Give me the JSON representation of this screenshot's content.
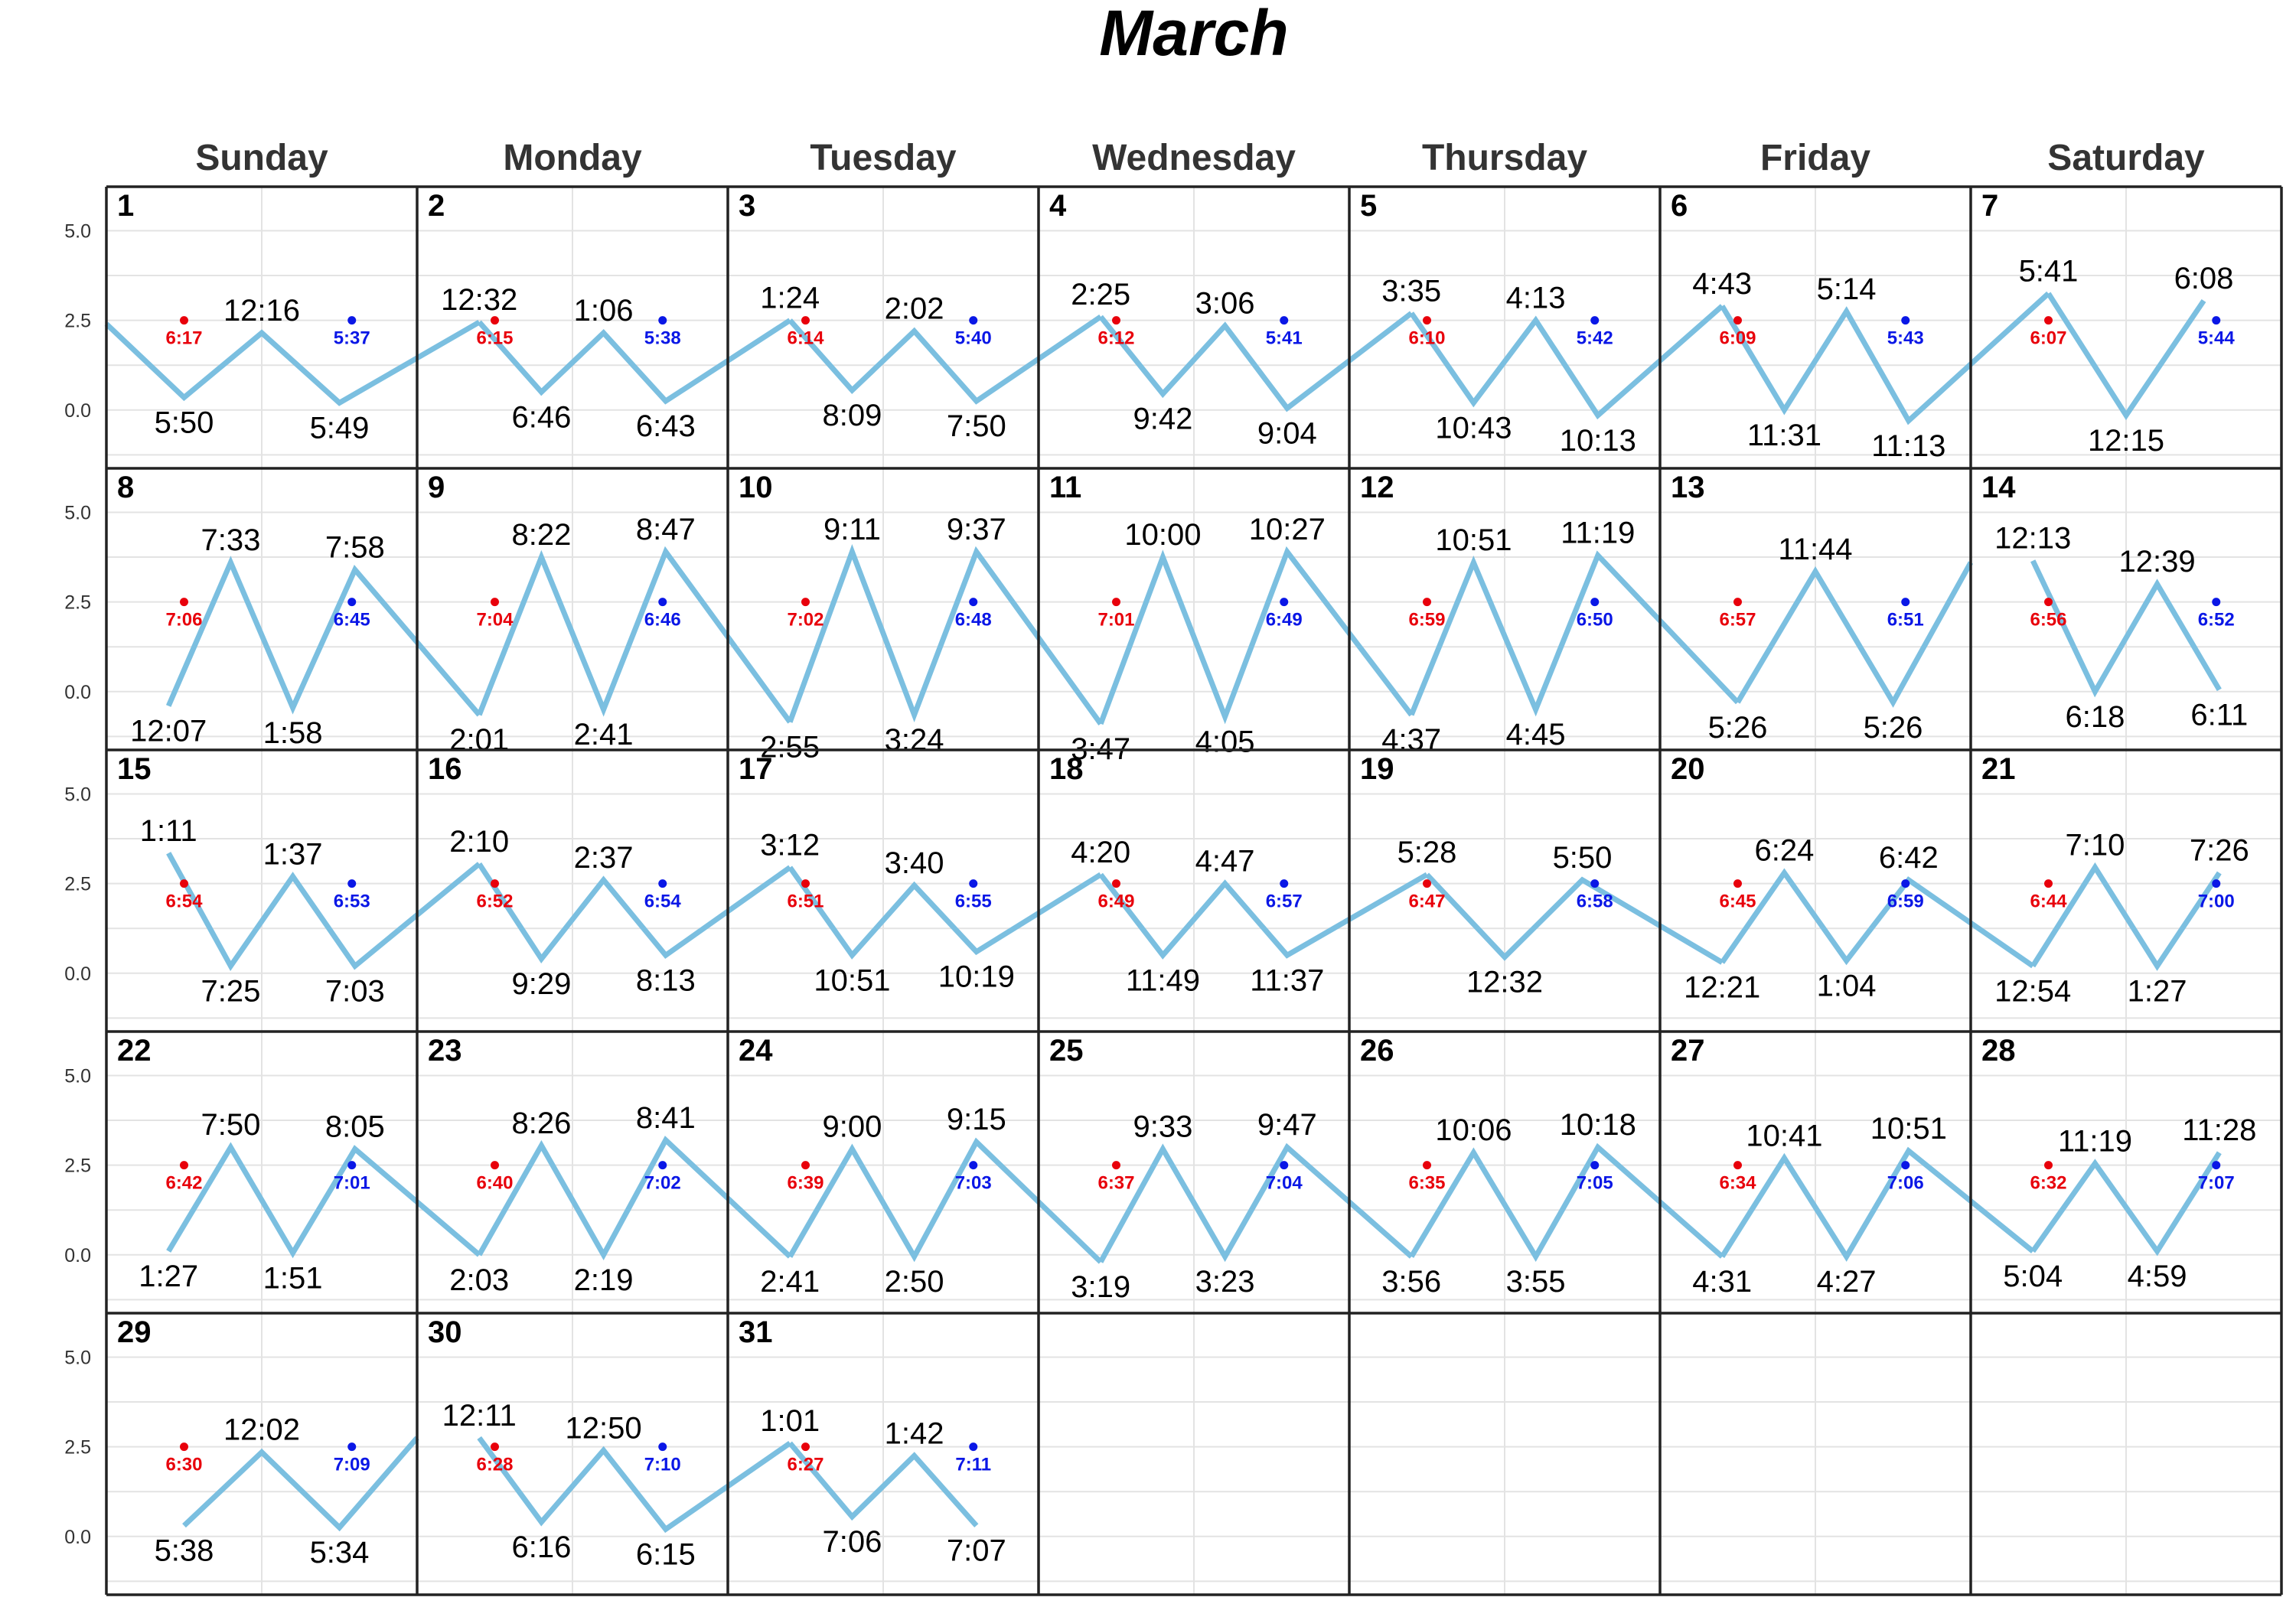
{
  "chart_data": {
    "type": "line",
    "title": "March",
    "weekdays": [
      "Sunday",
      "Monday",
      "Tuesday",
      "Wednesday",
      "Thursday",
      "Friday",
      "Saturday"
    ],
    "y_ticks": [
      "5.0",
      "2.5",
      "0.0"
    ],
    "y_tick_values": [
      5.0,
      2.5,
      0.0
    ],
    "ylim": [
      -1.2,
      5.8
    ],
    "first_weekday_index": 0,
    "grid": true,
    "colors": {
      "tide_line": "#7bbfe0",
      "sunrise": "#e8000b",
      "sunset": "#0a17e6",
      "grid": "#e3e3e3",
      "border": "#222222",
      "text": "#000000",
      "weekday_text": "#333333"
    },
    "days": [
      {
        "day": "1",
        "sunrise": "6:17",
        "sunset": "5:37",
        "tides": [
          [
            "5:50",
            0.35,
            "L"
          ],
          [
            "12:16",
            2.15,
            "H"
          ],
          [
            "5:49",
            0.2,
            "L"
          ]
        ],
        "carry_in": 2.4
      },
      {
        "day": "2",
        "sunrise": "6:15",
        "sunset": "5:38",
        "tides": [
          [
            "12:32",
            2.45,
            "H"
          ],
          [
            "6:46",
            0.5,
            "L"
          ],
          [
            "1:06",
            2.15,
            "H"
          ],
          [
            "6:43",
            0.25,
            "L"
          ]
        ]
      },
      {
        "day": "3",
        "sunrise": "6:14",
        "sunset": "5:40",
        "tides": [
          [
            "1:24",
            2.5,
            "H"
          ],
          [
            "8:09",
            0.55,
            "L"
          ],
          [
            "2:02",
            2.2,
            "H"
          ],
          [
            "7:50",
            0.25,
            "L"
          ]
        ]
      },
      {
        "day": "4",
        "sunrise": "6:12",
        "sunset": "5:41",
        "tides": [
          [
            "2:25",
            2.6,
            "H"
          ],
          [
            "9:42",
            0.45,
            "L"
          ],
          [
            "3:06",
            2.35,
            "H"
          ],
          [
            "9:04",
            0.05,
            "L"
          ]
        ]
      },
      {
        "day": "5",
        "sunrise": "6:10",
        "sunset": "5:42",
        "tides": [
          [
            "3:35",
            2.7,
            "H"
          ],
          [
            "10:43",
            0.2,
            "L"
          ],
          [
            "4:13",
            2.5,
            "H"
          ],
          [
            "10:13",
            -0.15,
            "L"
          ]
        ]
      },
      {
        "day": "6",
        "sunrise": "6:09",
        "sunset": "5:43",
        "tides": [
          [
            "4:43",
            2.9,
            "H"
          ],
          [
            "11:31",
            0.0,
            "L"
          ],
          [
            "5:14",
            2.75,
            "H"
          ],
          [
            "11:13",
            -0.3,
            "L"
          ]
        ]
      },
      {
        "day": "7",
        "sunrise": "6:07",
        "sunset": "5:44",
        "tides": [
          [
            "5:41",
            3.25,
            "H"
          ],
          [
            "12:15",
            -0.15,
            "L"
          ],
          [
            "6:08",
            3.05,
            "H"
          ]
        ]
      },
      {
        "day": "8",
        "sunrise": "7:06",
        "sunset": "6:45",
        "tides": [
          [
            "12:07",
            -0.4,
            "L"
          ],
          [
            "7:33",
            3.6,
            "H"
          ],
          [
            "1:58",
            -0.45,
            "L"
          ],
          [
            "7:58",
            3.4,
            "H"
          ]
        ]
      },
      {
        "day": "9",
        "sunrise": "7:04",
        "sunset": "6:46",
        "tides": [
          [
            "2:01",
            -0.65,
            "L"
          ],
          [
            "8:22",
            3.75,
            "H"
          ],
          [
            "2:41",
            -0.5,
            "L"
          ],
          [
            "8:47",
            3.9,
            "H"
          ]
        ]
      },
      {
        "day": "10",
        "sunrise": "7:02",
        "sunset": "6:48",
        "tides": [
          [
            "2:55",
            -0.85,
            "L"
          ],
          [
            "9:11",
            3.9,
            "H"
          ],
          [
            "3:24",
            -0.65,
            "L"
          ],
          [
            "9:37",
            3.9,
            "H"
          ]
        ]
      },
      {
        "day": "11",
        "sunrise": "7:01",
        "sunset": "6:49",
        "tides": [
          [
            "3:47",
            -0.9,
            "L"
          ],
          [
            "10:00",
            3.75,
            "H"
          ],
          [
            "4:05",
            -0.7,
            "L"
          ],
          [
            "10:27",
            3.9,
            "H"
          ]
        ]
      },
      {
        "day": "12",
        "sunrise": "6:59",
        "sunset": "6:50",
        "tides": [
          [
            "4:37",
            -0.65,
            "L"
          ],
          [
            "10:51",
            3.6,
            "H"
          ],
          [
            "4:45",
            -0.5,
            "L"
          ],
          [
            "11:19",
            3.8,
            "H"
          ]
        ]
      },
      {
        "day": "13",
        "sunrise": "6:57",
        "sunset": "6:51",
        "tides": [
          [
            "5:26",
            -0.3,
            "L"
          ],
          [
            "11:44",
            3.35,
            "H"
          ],
          [
            "5:26",
            -0.3,
            "L"
          ]
        ],
        "carry_out": 3.6
      },
      {
        "day": "14",
        "sunrise": "6:56",
        "sunset": "6:52",
        "tides": [
          [
            "12:13",
            3.65,
            "H"
          ],
          [
            "6:18",
            0.0,
            "L"
          ],
          [
            "12:39",
            3.0,
            "H"
          ],
          [
            "6:11",
            0.05,
            "L"
          ]
        ]
      },
      {
        "day": "15",
        "sunrise": "6:54",
        "sunset": "6:53",
        "tides": [
          [
            "1:11",
            3.35,
            "H"
          ],
          [
            "7:25",
            0.2,
            "L"
          ],
          [
            "1:37",
            2.7,
            "H"
          ],
          [
            "7:03",
            0.2,
            "L"
          ]
        ]
      },
      {
        "day": "16",
        "sunrise": "6:52",
        "sunset": "6:54",
        "tides": [
          [
            "2:10",
            3.05,
            "H"
          ],
          [
            "9:29",
            0.4,
            "L"
          ],
          [
            "2:37",
            2.6,
            "H"
          ],
          [
            "8:13",
            0.5,
            "L"
          ]
        ]
      },
      {
        "day": "17",
        "sunrise": "6:51",
        "sunset": "6:55",
        "tides": [
          [
            "3:12",
            2.95,
            "H"
          ],
          [
            "10:51",
            0.5,
            "L"
          ],
          [
            "3:40",
            2.45,
            "H"
          ],
          [
            "10:19",
            0.6,
            "L"
          ]
        ]
      },
      {
        "day": "18",
        "sunrise": "6:49",
        "sunset": "6:57",
        "tides": [
          [
            "4:20",
            2.75,
            "H"
          ],
          [
            "11:49",
            0.5,
            "L"
          ],
          [
            "4:47",
            2.5,
            "H"
          ],
          [
            "11:37",
            0.5,
            "L"
          ]
        ]
      },
      {
        "day": "19",
        "sunrise": "6:47",
        "sunset": "6:58",
        "tides": [
          [
            "5:28",
            2.75,
            "H"
          ],
          [
            "12:32",
            0.45,
            "L"
          ],
          [
            "5:50",
            2.6,
            "H"
          ]
        ]
      },
      {
        "day": "20",
        "sunrise": "6:45",
        "sunset": "6:59",
        "tides": [
          [
            "12:21",
            0.3,
            "L"
          ],
          [
            "6:24",
            2.8,
            "H"
          ],
          [
            "1:04",
            0.35,
            "L"
          ],
          [
            "6:42",
            2.6,
            "H"
          ]
        ]
      },
      {
        "day": "21",
        "sunrise": "6:44",
        "sunset": "7:00",
        "tides": [
          [
            "12:54",
            0.2,
            "L"
          ],
          [
            "7:10",
            2.95,
            "H"
          ],
          [
            "1:27",
            0.2,
            "L"
          ],
          [
            "7:26",
            2.8,
            "H"
          ]
        ]
      },
      {
        "day": "22",
        "sunrise": "6:42",
        "sunset": "7:01",
        "tides": [
          [
            "1:27",
            0.1,
            "L"
          ],
          [
            "7:50",
            3.0,
            "H"
          ],
          [
            "1:51",
            0.05,
            "L"
          ],
          [
            "8:05",
            2.95,
            "H"
          ]
        ]
      },
      {
        "day": "23",
        "sunrise": "6:40",
        "sunset": "7:02",
        "tides": [
          [
            "2:03",
            0.0,
            "L"
          ],
          [
            "8:26",
            3.05,
            "H"
          ],
          [
            "2:19",
            0.0,
            "L"
          ],
          [
            "8:41",
            3.2,
            "H"
          ]
        ]
      },
      {
        "day": "24",
        "sunrise": "6:39",
        "sunset": "7:03",
        "tides": [
          [
            "2:41",
            -0.05,
            "L"
          ],
          [
            "9:00",
            2.95,
            "H"
          ],
          [
            "2:50",
            -0.05,
            "L"
          ],
          [
            "9:15",
            3.15,
            "H"
          ]
        ]
      },
      {
        "day": "25",
        "sunrise": "6:37",
        "sunset": "7:04",
        "tides": [
          [
            "3:19",
            -0.2,
            "L"
          ],
          [
            "9:33",
            2.95,
            "H"
          ],
          [
            "3:23",
            -0.05,
            "L"
          ],
          [
            "9:47",
            3.0,
            "H"
          ]
        ]
      },
      {
        "day": "26",
        "sunrise": "6:35",
        "sunset": "7:05",
        "tides": [
          [
            "3:56",
            -0.05,
            "L"
          ],
          [
            "10:06",
            2.85,
            "H"
          ],
          [
            "3:55",
            -0.05,
            "L"
          ],
          [
            "10:18",
            3.0,
            "H"
          ]
        ]
      },
      {
        "day": "27",
        "sunrise": "6:34",
        "sunset": "7:06",
        "tides": [
          [
            "4:31",
            -0.05,
            "L"
          ],
          [
            "10:41",
            2.7,
            "H"
          ],
          [
            "4:27",
            -0.05,
            "L"
          ],
          [
            "10:51",
            2.9,
            "H"
          ]
        ]
      },
      {
        "day": "28",
        "sunrise": "6:32",
        "sunset": "7:07",
        "tides": [
          [
            "5:04",
            0.1,
            "L"
          ],
          [
            "11:19",
            2.55,
            "H"
          ],
          [
            "4:59",
            0.1,
            "L"
          ],
          [
            "11:28",
            2.85,
            "H"
          ]
        ]
      },
      {
        "day": "29",
        "sunrise": "6:30",
        "sunset": "7:09",
        "tides": [
          [
            "5:38",
            0.3,
            "L"
          ],
          [
            "12:02",
            2.35,
            "H"
          ],
          [
            "5:34",
            0.25,
            "L"
          ]
        ],
        "carry_out": 2.75
      },
      {
        "day": "30",
        "sunrise": "6:28",
        "sunset": "7:10",
        "tides": [
          [
            "12:11",
            2.75,
            "H"
          ],
          [
            "6:16",
            0.4,
            "L"
          ],
          [
            "12:50",
            2.4,
            "H"
          ],
          [
            "6:15",
            0.2,
            "L"
          ]
        ]
      },
      {
        "day": "31",
        "sunrise": "6:27",
        "sunset": "7:11",
        "tides": [
          [
            "1:01",
            2.6,
            "H"
          ],
          [
            "7:06",
            0.55,
            "L"
          ],
          [
            "1:42",
            2.25,
            "H"
          ],
          [
            "7:07",
            0.3,
            "L"
          ]
        ]
      }
    ]
  }
}
